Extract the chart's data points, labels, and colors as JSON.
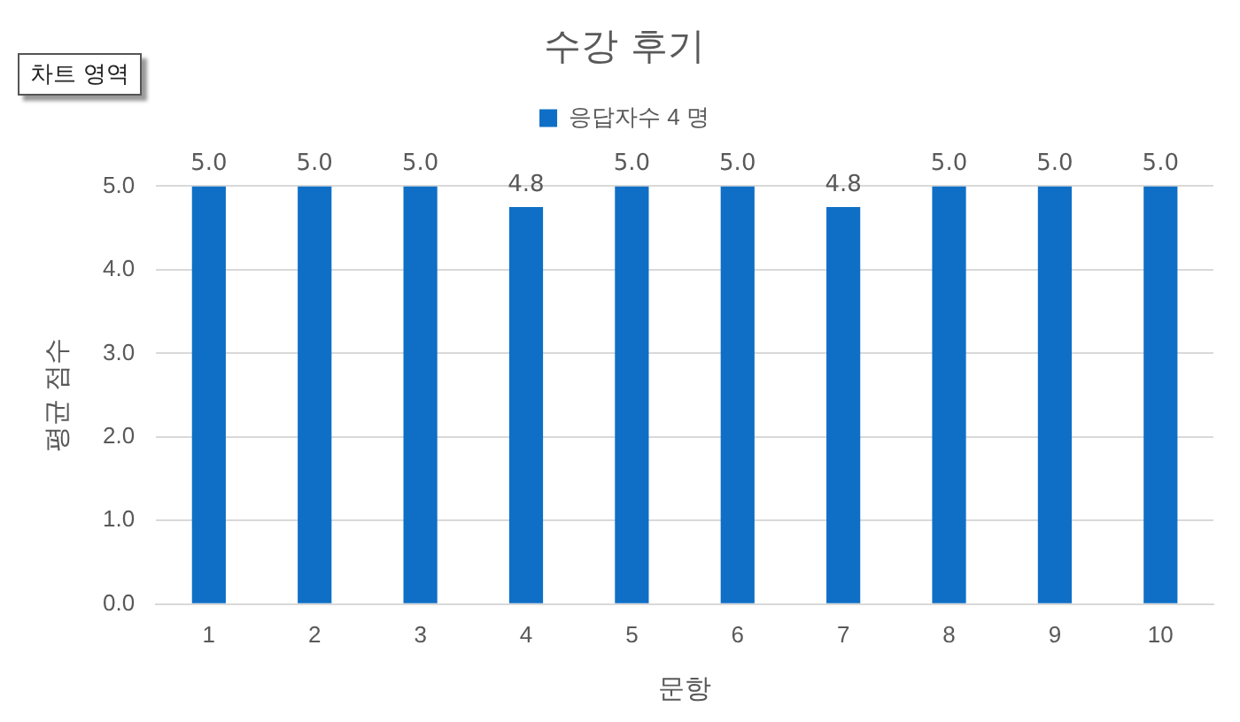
{
  "chart_data": {
    "type": "bar",
    "title": "수강 후기",
    "xlabel": "문항",
    "ylabel": "평균 점수",
    "categories": [
      "1",
      "2",
      "3",
      "4",
      "5",
      "6",
      "7",
      "8",
      "9",
      "10"
    ],
    "series": [
      {
        "name": "응답자수 4 명",
        "color": "#0f6fc6",
        "values": [
          5.0,
          5.0,
          5.0,
          4.75,
          5.0,
          5.0,
          4.75,
          5.0,
          5.0,
          5.0
        ],
        "value_labels": [
          "5.0",
          "5.0",
          "5.0",
          "4.8",
          "5.0",
          "5.0",
          "4.8",
          "5.0",
          "5.0",
          "5.0"
        ]
      }
    ],
    "ylim": [
      0,
      5
    ],
    "yticks": [
      {
        "value": 0,
        "label": "0.0"
      },
      {
        "value": 1,
        "label": "1.0"
      },
      {
        "value": 2,
        "label": "2.0"
      },
      {
        "value": 3,
        "label": "3.0"
      },
      {
        "value": 4,
        "label": "4.0"
      },
      {
        "value": 5,
        "label": "5.0"
      }
    ],
    "grid": "y",
    "legend": "top",
    "annotations": [
      "차트 영역"
    ]
  }
}
